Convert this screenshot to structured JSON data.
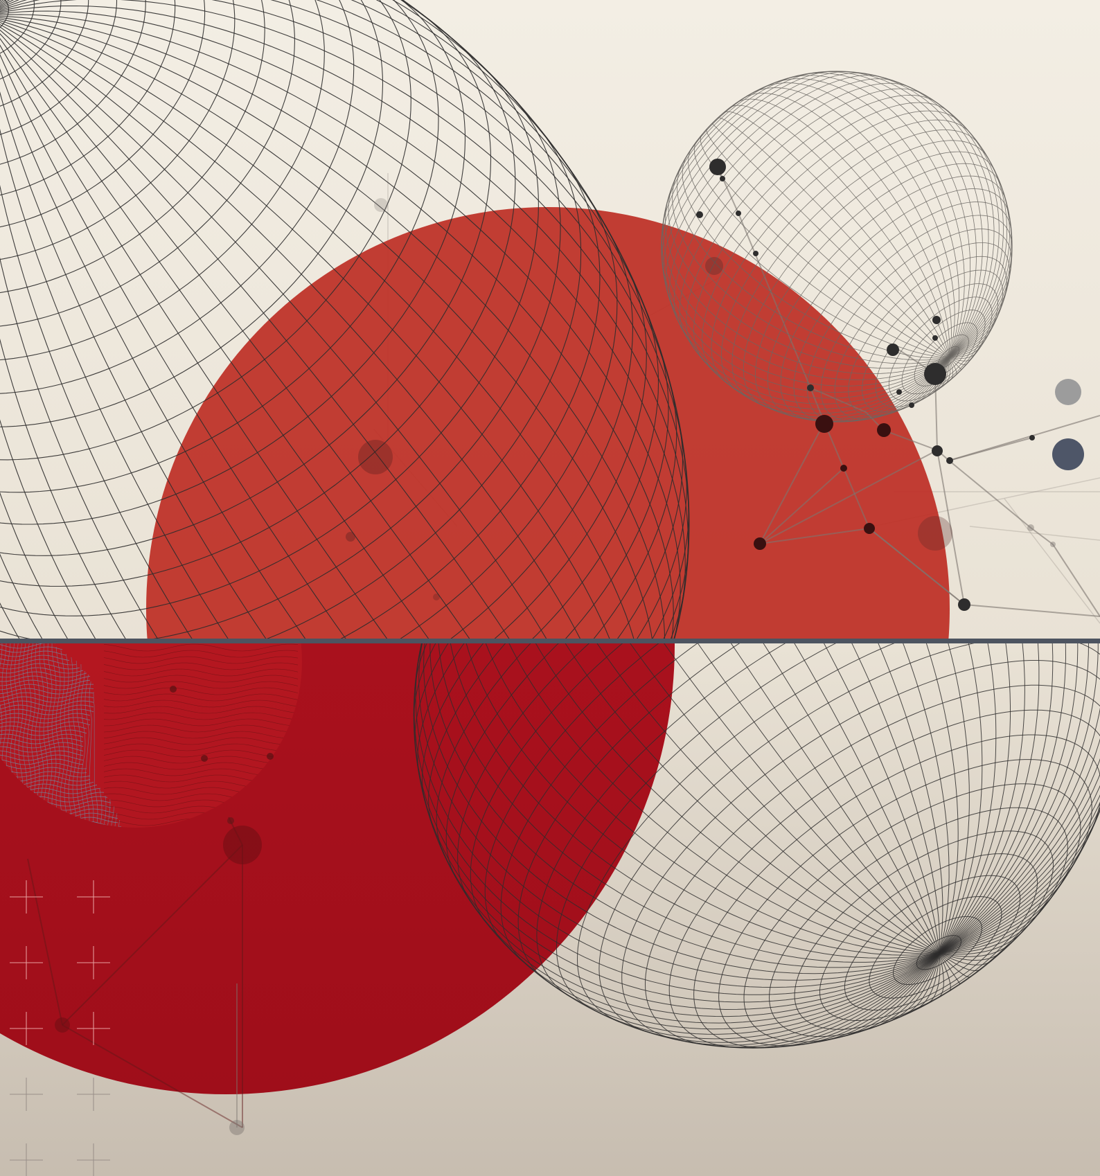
{
  "colors": {
    "background_top": "#f3eee4",
    "background_mid": "#e9e2d5",
    "background_bottom": "#c7bdb0",
    "red_upper": "#bd2f26",
    "red_lower": "#b0101e",
    "wire_dark": "#2e2d2d",
    "wire_light": "#6a6763",
    "divider": "#4d5460",
    "slate_dot": "#4e5668",
    "grey_dot": "#9c9c9c",
    "network_line": "#7d7670",
    "face_mesh": "#6e8aa0",
    "cross_mark": "#9a908a"
  },
  "elements": {
    "big_wire_ellipsoid": "wire-ellipsoid",
    "small_wire_sphere": "wire-sphere",
    "lower_wire_sphere": "wire-sphere",
    "upper_red_disc": "filled-circle",
    "lower_red_disc": "filled-circle",
    "face_mesh": "wireframe-head",
    "network": "node-link-graph",
    "crosses": "plus-marks"
  }
}
